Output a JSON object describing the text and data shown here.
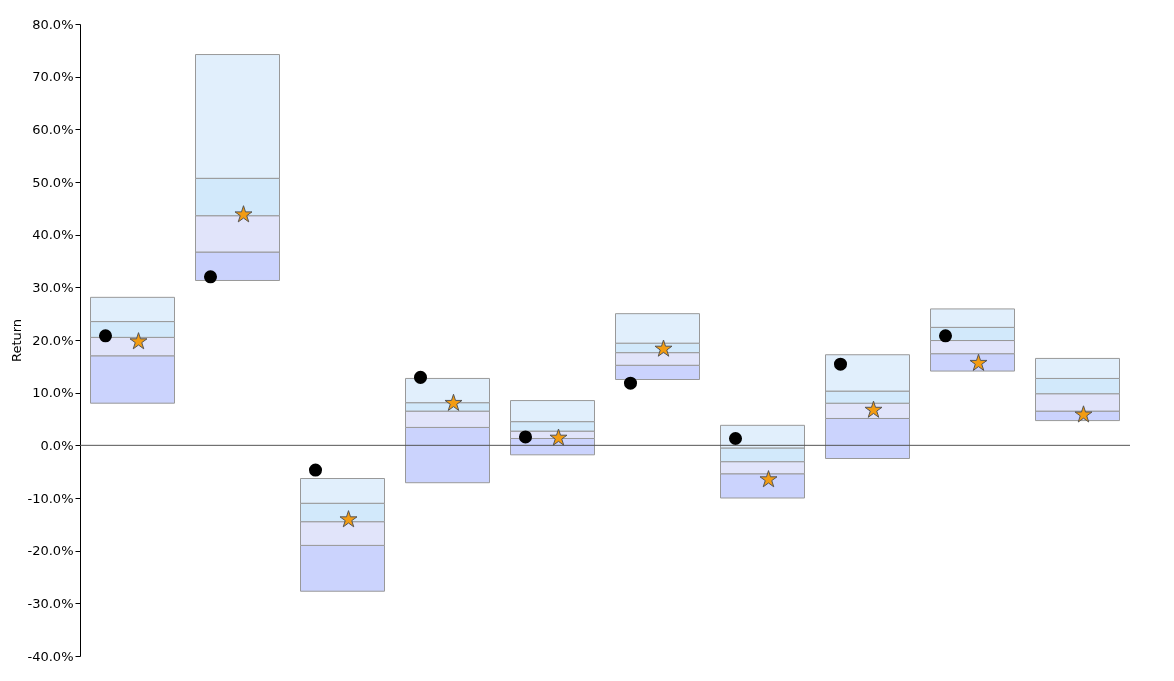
{
  "chart_data": {
    "type": "bar",
    "ylabel": "Return",
    "categories": [
      null,
      null,
      null,
      null,
      null,
      null,
      null,
      null,
      null,
      null
    ],
    "series": [
      {
        "color": "#cbd3fd",
        "base": [
          8.0,
          31.3,
          -27.7,
          -7.1,
          -1.8,
          12.5,
          -10.0,
          -2.5,
          14.1,
          4.7
        ],
        "values": [
          9.0,
          5.4,
          8.7,
          10.5,
          3.1,
          2.7,
          4.6,
          7.6,
          3.3,
          1.8
        ]
      },
      {
        "color": "#e1e4fa",
        "base": [
          17.0,
          36.7,
          -19.0,
          3.4,
          1.3,
          15.2,
          -5.4,
          5.1,
          17.4,
          6.5
        ],
        "values": [
          3.5,
          6.9,
          4.5,
          3.1,
          1.4,
          2.4,
          2.3,
          2.9,
          2.5,
          3.3
        ]
      },
      {
        "color": "#d2e9fb",
        "base": [
          20.5,
          43.6,
          -14.5,
          6.5,
          2.7,
          17.6,
          -3.1,
          8.0,
          19.9,
          9.8
        ],
        "values": [
          3.0,
          7.1,
          3.5,
          1.6,
          1.8,
          1.8,
          2.6,
          2.3,
          2.5,
          2.9
        ]
      },
      {
        "color": "#e1effc",
        "base": [
          23.5,
          50.7,
          -11.0,
          8.1,
          4.5,
          19.4,
          -0.5,
          10.3,
          22.4,
          12.7
        ],
        "values": [
          4.6,
          23.5,
          4.7,
          4.6,
          4.0,
          5.6,
          4.3,
          6.9,
          3.5,
          3.8
        ]
      },
      {
        "type": "scatter",
        "marker": "circle",
        "color": "#000000",
        "values": [
          20.8,
          32.0,
          -4.7,
          12.9,
          1.6,
          11.8,
          1.3,
          15.4,
          20.8,
          null
        ]
      },
      {
        "type": "scatter",
        "marker": "star",
        "color": "#f39c12",
        "values": [
          19.7,
          43.8,
          -14.1,
          8.0,
          1.4,
          18.3,
          -6.5,
          6.7,
          15.6,
          5.8
        ]
      }
    ],
    "ylim": [
      -40,
      80
    ],
    "yticks": [
      {
        "value": -40,
        "label": "-40.0%"
      },
      {
        "value": -30,
        "label": "-30.0%"
      },
      {
        "value": -20,
        "label": "-20.0%"
      },
      {
        "value": -10,
        "label": "-10.0%"
      },
      {
        "value": 0,
        "label": "0.0%"
      },
      {
        "value": 10,
        "label": "10.0%"
      },
      {
        "value": 20,
        "label": "20.0%"
      },
      {
        "value": 30,
        "label": "30.0%"
      },
      {
        "value": 40,
        "label": "40.0%"
      },
      {
        "value": 50,
        "label": "50.0%"
      },
      {
        "value": 60,
        "label": "60.0%"
      },
      {
        "value": 70,
        "label": "70.0%"
      },
      {
        "value": 80,
        "label": "80.0%"
      }
    ],
    "ref_lines": [
      {
        "axis": "y",
        "value": 0,
        "color": "#555555"
      }
    ],
    "tick_labels": "y",
    "grid": false
  }
}
